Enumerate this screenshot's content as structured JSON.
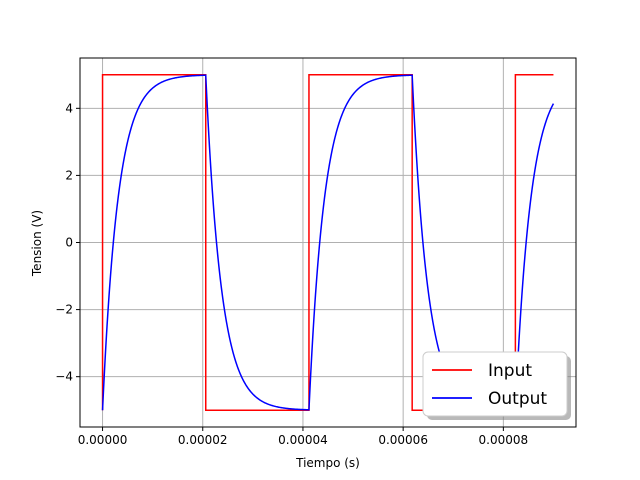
{
  "chart_data": {
    "type": "line",
    "title": "",
    "xlabel": "Tiempo (s)",
    "ylabel": "Tension (V)",
    "xlim": [
      -4.5e-06,
      9.45e-05
    ],
    "ylim": [
      -5.5,
      5.5
    ],
    "grid": true,
    "legend_position": "lower-right",
    "x_ticks": [
      {
        "value": 0,
        "label": "0.00000"
      },
      {
        "value": 2e-05,
        "label": "0.00002"
      },
      {
        "value": 4e-05,
        "label": "0.00004"
      },
      {
        "value": 6e-05,
        "label": "0.00006"
      },
      {
        "value": 8e-05,
        "label": "0.00008"
      }
    ],
    "y_ticks": [
      {
        "value": -4,
        "label": "−4"
      },
      {
        "value": -2,
        "label": "−2"
      },
      {
        "value": 0,
        "label": "0"
      },
      {
        "value": 2,
        "label": "2"
      },
      {
        "value": 4,
        "label": "4"
      }
    ],
    "series": [
      {
        "name": "Input",
        "color": "#ff0000",
        "step": true,
        "amplitude": 5,
        "half_period": 2.06e-05,
        "t_start": 0,
        "t_end": 9e-05
      },
      {
        "name": "Output",
        "color": "#0000ff",
        "rc_response": true,
        "amplitude": 5,
        "initial_value": -5,
        "time_constant": 3.1e-06,
        "half_period": 2.06e-05,
        "t_start": 0,
        "t_end": 9e-05
      }
    ]
  }
}
